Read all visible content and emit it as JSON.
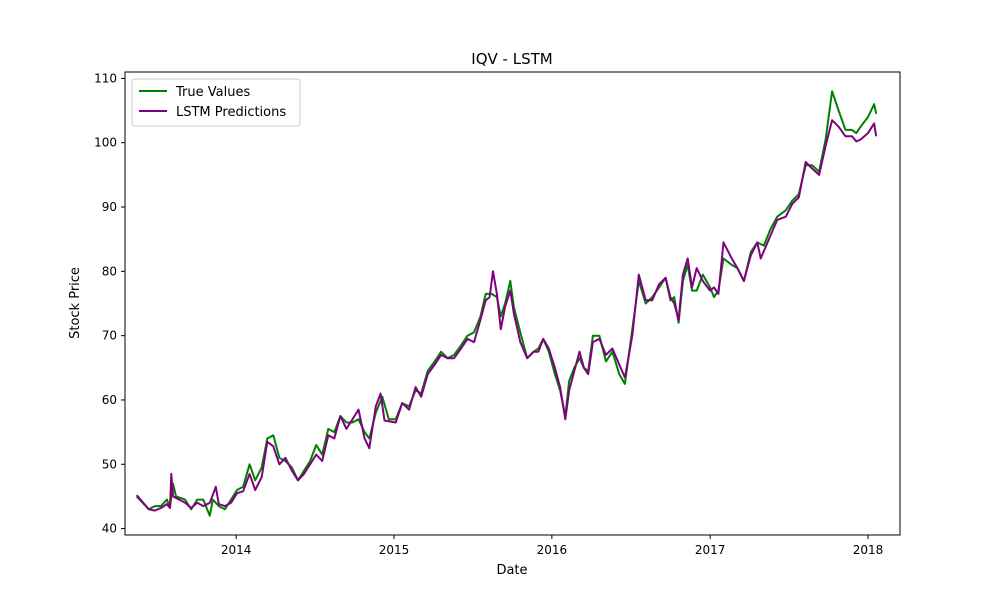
{
  "chart_data": {
    "type": "line",
    "title": "IQV - LSTM",
    "xlabel": "Date",
    "ylabel": "Stock Price",
    "xlim": [
      "2013-04-19",
      "2018-03-16"
    ],
    "ylim": [
      39,
      111
    ],
    "x_ticks": [
      "2014-01-01",
      "2015-01-01",
      "2016-01-01",
      "2017-01-01",
      "2018-01-01"
    ],
    "x_tick_labels": [
      "2014",
      "2015",
      "2016",
      "2017",
      "2018"
    ],
    "y_ticks": [
      40,
      50,
      60,
      70,
      80,
      90,
      100,
      110
    ],
    "y_tick_labels": [
      "40",
      "50",
      "60",
      "70",
      "80",
      "90",
      "100",
      "110"
    ],
    "grid": false,
    "legend_position": "upper-left",
    "series": [
      {
        "name": "True Values",
        "color": "#008000",
        "points": [
          [
            "2013-05-16",
            45.0
          ],
          [
            "2013-06-13",
            43.0
          ],
          [
            "2013-06-27",
            43.5
          ],
          [
            "2013-07-11",
            43.5
          ],
          [
            "2013-07-25",
            44.5
          ],
          [
            "2013-08-01",
            43.3
          ],
          [
            "2013-08-08",
            47.0
          ],
          [
            "2013-08-15",
            45.0
          ],
          [
            "2013-09-05",
            44.5
          ],
          [
            "2013-09-19",
            43.0
          ],
          [
            "2013-10-03",
            44.5
          ],
          [
            "2013-10-17",
            44.5
          ],
          [
            "2013-11-01",
            42.0
          ],
          [
            "2013-11-08",
            44.5
          ],
          [
            "2013-11-22",
            43.5
          ],
          [
            "2013-12-06",
            43.0
          ],
          [
            "2013-12-20",
            44.5
          ],
          [
            "2014-01-03",
            46.0
          ],
          [
            "2014-01-17",
            46.5
          ],
          [
            "2014-02-01",
            50.0
          ],
          [
            "2014-02-14",
            47.5
          ],
          [
            "2014-03-01",
            49.5
          ],
          [
            "2014-03-14",
            54.0
          ],
          [
            "2014-03-28",
            54.5
          ],
          [
            "2014-04-11",
            51.0
          ],
          [
            "2014-04-25",
            50.5
          ],
          [
            "2014-05-10",
            49.5
          ],
          [
            "2014-05-24",
            47.5
          ],
          [
            "2014-06-07",
            49.0
          ],
          [
            "2014-06-21",
            50.5
          ],
          [
            "2014-07-05",
            53.0
          ],
          [
            "2014-07-19",
            51.5
          ],
          [
            "2014-08-02",
            55.5
          ],
          [
            "2014-08-16",
            55.0
          ],
          [
            "2014-08-30",
            57.5
          ],
          [
            "2014-09-13",
            56.5
          ],
          [
            "2014-09-27",
            56.5
          ],
          [
            "2014-10-11",
            57.0
          ],
          [
            "2014-10-25",
            55.0
          ],
          [
            "2014-11-05",
            54.0
          ],
          [
            "2014-11-20",
            58.0
          ],
          [
            "2014-12-05",
            60.5
          ],
          [
            "2014-12-20",
            57.0
          ],
          [
            "2015-01-05",
            57.0
          ],
          [
            "2015-01-20",
            59.5
          ],
          [
            "2015-02-05",
            59.0
          ],
          [
            "2015-02-20",
            61.5
          ],
          [
            "2015-03-05",
            61.0
          ],
          [
            "2015-03-20",
            64.5
          ],
          [
            "2015-04-05",
            66.0
          ],
          [
            "2015-04-20",
            67.5
          ],
          [
            "2015-05-05",
            66.5
          ],
          [
            "2015-05-20",
            67.0
          ],
          [
            "2015-06-05",
            68.5
          ],
          [
            "2015-06-20",
            70.0
          ],
          [
            "2015-07-05",
            70.5
          ],
          [
            "2015-07-20",
            73.0
          ],
          [
            "2015-08-01",
            76.5
          ],
          [
            "2015-08-15",
            76.5
          ],
          [
            "2015-08-27",
            76.0
          ],
          [
            "2015-09-05",
            73.0
          ],
          [
            "2015-09-15",
            75.0
          ],
          [
            "2015-09-27",
            78.5
          ],
          [
            "2015-10-05",
            74.5
          ],
          [
            "2015-10-20",
            70.5
          ],
          [
            "2015-11-05",
            66.5
          ],
          [
            "2015-11-20",
            67.5
          ],
          [
            "2015-12-01",
            68.0
          ],
          [
            "2015-12-12",
            69.5
          ],
          [
            "2015-12-25",
            67.5
          ],
          [
            "2016-01-08",
            64.0
          ],
          [
            "2016-01-20",
            61.5
          ],
          [
            "2016-02-01",
            57.5
          ],
          [
            "2016-02-10",
            63.0
          ],
          [
            "2016-02-22",
            65.0
          ],
          [
            "2016-03-05",
            66.5
          ],
          [
            "2016-03-15",
            65.0
          ],
          [
            "2016-03-25",
            64.5
          ],
          [
            "2016-04-05",
            70.0
          ],
          [
            "2016-04-20",
            70.0
          ],
          [
            "2016-05-05",
            66.0
          ],
          [
            "2016-05-20",
            67.5
          ],
          [
            "2016-06-05",
            64.0
          ],
          [
            "2016-06-18",
            62.5
          ],
          [
            "2016-07-05",
            71.0
          ],
          [
            "2016-07-20",
            78.5
          ],
          [
            "2016-08-05",
            75.0
          ],
          [
            "2016-08-20",
            76.0
          ],
          [
            "2016-09-05",
            77.5
          ],
          [
            "2016-09-20",
            79.0
          ],
          [
            "2016-10-01",
            75.5
          ],
          [
            "2016-10-10",
            76.0
          ],
          [
            "2016-10-20",
            72.0
          ],
          [
            "2016-10-30",
            78.5
          ],
          [
            "2016-11-10",
            81.0
          ],
          [
            "2016-11-20",
            77.0
          ],
          [
            "2016-12-01",
            77.0
          ],
          [
            "2016-12-15",
            79.5
          ],
          [
            "2017-01-01",
            77.5
          ],
          [
            "2017-01-10",
            76.0
          ],
          [
            "2017-01-20",
            77.0
          ],
          [
            "2017-02-01",
            82.0
          ],
          [
            "2017-02-20",
            81.0
          ],
          [
            "2017-03-05",
            80.5
          ],
          [
            "2017-03-20",
            78.5
          ],
          [
            "2017-04-05",
            83.0
          ],
          [
            "2017-04-20",
            84.5
          ],
          [
            "2017-05-05",
            84.0
          ],
          [
            "2017-05-20",
            86.5
          ],
          [
            "2017-06-05",
            88.5
          ],
          [
            "2017-06-25",
            89.5
          ],
          [
            "2017-07-10",
            91.0
          ],
          [
            "2017-07-25",
            92.0
          ],
          [
            "2017-08-10",
            96.5
          ],
          [
            "2017-08-25",
            96.5
          ],
          [
            "2017-09-10",
            95.5
          ],
          [
            "2017-09-25",
            100.5
          ],
          [
            "2017-10-10",
            108.0
          ],
          [
            "2017-10-25",
            105.0
          ],
          [
            "2017-11-10",
            102.0
          ],
          [
            "2017-11-25",
            102.0
          ],
          [
            "2017-12-05",
            101.5
          ],
          [
            "2017-12-15",
            102.5
          ],
          [
            "2018-01-01",
            104.0
          ],
          [
            "2018-01-15",
            106.0
          ],
          [
            "2018-01-20",
            104.5
          ]
        ]
      },
      {
        "name": "LSTM Predictions",
        "color": "#800080",
        "points": [
          [
            "2013-05-16",
            45.2
          ],
          [
            "2013-06-13",
            43.0
          ],
          [
            "2013-06-27",
            42.8
          ],
          [
            "2013-07-11",
            43.2
          ],
          [
            "2013-07-25",
            43.8
          ],
          [
            "2013-08-01",
            43.2
          ],
          [
            "2013-08-04",
            48.5
          ],
          [
            "2013-08-08",
            45.0
          ],
          [
            "2013-09-05",
            44.0
          ],
          [
            "2013-09-19",
            43.2
          ],
          [
            "2013-10-03",
            44.0
          ],
          [
            "2013-10-17",
            43.5
          ],
          [
            "2013-11-01",
            44.0
          ],
          [
            "2013-11-15",
            46.5
          ],
          [
            "2013-11-22",
            43.8
          ],
          [
            "2013-12-06",
            43.5
          ],
          [
            "2013-12-20",
            44.0
          ],
          [
            "2014-01-03",
            45.5
          ],
          [
            "2014-01-17",
            45.8
          ],
          [
            "2014-02-01",
            48.5
          ],
          [
            "2014-02-14",
            46.0
          ],
          [
            "2014-03-01",
            48.0
          ],
          [
            "2014-03-14",
            53.5
          ],
          [
            "2014-03-28",
            52.8
          ],
          [
            "2014-04-11",
            50.0
          ],
          [
            "2014-04-25",
            51.0
          ],
          [
            "2014-05-10",
            49.0
          ],
          [
            "2014-05-24",
            47.5
          ],
          [
            "2014-06-07",
            48.5
          ],
          [
            "2014-06-21",
            50.0
          ],
          [
            "2014-07-05",
            51.5
          ],
          [
            "2014-07-19",
            50.5
          ],
          [
            "2014-08-02",
            54.5
          ],
          [
            "2014-08-16",
            54.0
          ],
          [
            "2014-08-30",
            57.5
          ],
          [
            "2014-09-13",
            55.5
          ],
          [
            "2014-09-27",
            57.0
          ],
          [
            "2014-10-11",
            58.5
          ],
          [
            "2014-10-25",
            54.0
          ],
          [
            "2014-11-05",
            52.5
          ],
          [
            "2014-11-20",
            59.0
          ],
          [
            "2014-12-01",
            61.0
          ],
          [
            "2014-12-10",
            56.8
          ],
          [
            "2015-01-05",
            56.5
          ],
          [
            "2015-01-20",
            59.5
          ],
          [
            "2015-02-05",
            58.5
          ],
          [
            "2015-02-20",
            62.0
          ],
          [
            "2015-03-05",
            60.5
          ],
          [
            "2015-03-20",
            64.0
          ],
          [
            "2015-04-05",
            65.5
          ],
          [
            "2015-04-20",
            67.0
          ],
          [
            "2015-05-05",
            66.5
          ],
          [
            "2015-05-20",
            66.5
          ],
          [
            "2015-06-05",
            68.0
          ],
          [
            "2015-06-20",
            69.5
          ],
          [
            "2015-07-05",
            69.0
          ],
          [
            "2015-07-20",
            72.5
          ],
          [
            "2015-08-01",
            75.5
          ],
          [
            "2015-08-10",
            76.0
          ],
          [
            "2015-08-18",
            80.0
          ],
          [
            "2015-08-27",
            76.5
          ],
          [
            "2015-09-05",
            71.0
          ],
          [
            "2015-09-15",
            74.5
          ],
          [
            "2015-09-27",
            77.0
          ],
          [
            "2015-10-05",
            73.5
          ],
          [
            "2015-10-20",
            69.0
          ],
          [
            "2015-11-05",
            66.5
          ],
          [
            "2015-11-20",
            67.5
          ],
          [
            "2015-12-01",
            67.5
          ],
          [
            "2015-12-12",
            69.5
          ],
          [
            "2015-12-25",
            68.0
          ],
          [
            "2016-01-08",
            65.0
          ],
          [
            "2016-01-20",
            62.0
          ],
          [
            "2016-02-01",
            57.0
          ],
          [
            "2016-02-10",
            61.5
          ],
          [
            "2016-02-22",
            64.5
          ],
          [
            "2016-03-05",
            67.5
          ],
          [
            "2016-03-15",
            65.0
          ],
          [
            "2016-03-25",
            64.0
          ],
          [
            "2016-04-05",
            69.0
          ],
          [
            "2016-04-20",
            69.5
          ],
          [
            "2016-05-05",
            67.0
          ],
          [
            "2016-05-20",
            68.0
          ],
          [
            "2016-06-05",
            65.5
          ],
          [
            "2016-06-18",
            63.5
          ],
          [
            "2016-07-05",
            70.0
          ],
          [
            "2016-07-20",
            79.5
          ],
          [
            "2016-08-05",
            75.5
          ],
          [
            "2016-08-20",
            75.5
          ],
          [
            "2016-09-05",
            78.0
          ],
          [
            "2016-09-20",
            79.0
          ],
          [
            "2016-10-01",
            76.0
          ],
          [
            "2016-10-10",
            75.0
          ],
          [
            "2016-10-20",
            72.5
          ],
          [
            "2016-10-30",
            79.5
          ],
          [
            "2016-11-10",
            82.0
          ],
          [
            "2016-11-20",
            77.5
          ],
          [
            "2016-12-01",
            80.5
          ],
          [
            "2016-12-15",
            78.5
          ],
          [
            "2017-01-01",
            77.0
          ],
          [
            "2017-01-10",
            77.5
          ],
          [
            "2017-01-20",
            76.5
          ],
          [
            "2017-02-01",
            84.5
          ],
          [
            "2017-02-20",
            82.0
          ],
          [
            "2017-03-05",
            80.5
          ],
          [
            "2017-03-20",
            78.5
          ],
          [
            "2017-04-05",
            82.5
          ],
          [
            "2017-04-20",
            84.5
          ],
          [
            "2017-04-28",
            82.0
          ],
          [
            "2017-05-20",
            85.5
          ],
          [
            "2017-06-05",
            88.0
          ],
          [
            "2017-06-25",
            88.5
          ],
          [
            "2017-07-10",
            90.5
          ],
          [
            "2017-07-25",
            91.5
          ],
          [
            "2017-08-10",
            97.0
          ],
          [
            "2017-08-25",
            96.0
          ],
          [
            "2017-09-10",
            95.0
          ],
          [
            "2017-09-25",
            99.5
          ],
          [
            "2017-10-10",
            103.5
          ],
          [
            "2017-10-25",
            102.5
          ],
          [
            "2017-11-10",
            101.0
          ],
          [
            "2017-11-25",
            101.0
          ],
          [
            "2017-12-05",
            100.2
          ],
          [
            "2017-12-15",
            100.5
          ],
          [
            "2018-01-01",
            101.5
          ],
          [
            "2018-01-15",
            103.0
          ],
          [
            "2018-01-20",
            101.0
          ]
        ]
      }
    ]
  }
}
